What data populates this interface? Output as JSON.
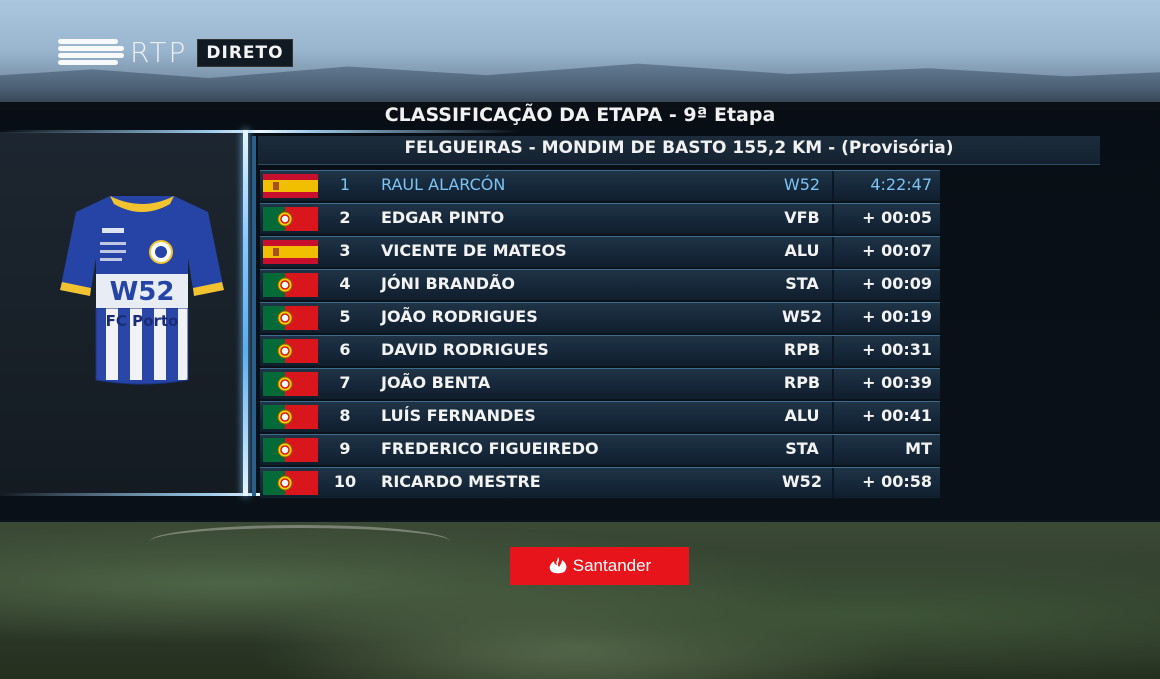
{
  "broadcast": {
    "channel": "RTP",
    "live_label": "DIRETO"
  },
  "header": {
    "title": "CLASSIFICAÇÃO DA ETAPA - 9ª Etapa",
    "subtitle": "FELGUEIRAS - MONDIM DE BASTO  155,2 KM - (Provisória)"
  },
  "jersey": {
    "brand": "W52",
    "club": "FC Porto",
    "icon": "team-jersey-icon"
  },
  "standings": [
    {
      "pos": "1",
      "name": "RAUL ALARCÓN",
      "team": "W52",
      "time": "4:22:47",
      "flag": "spain"
    },
    {
      "pos": "2",
      "name": "EDGAR PINTO",
      "team": "VFB",
      "time": "+ 00:05",
      "flag": "portugal"
    },
    {
      "pos": "3",
      "name": "VICENTE DE MATEOS",
      "team": "ALU",
      "time": "+ 00:07",
      "flag": "spain"
    },
    {
      "pos": "4",
      "name": "JÓNI BRANDÃO",
      "team": "STA",
      "time": "+ 00:09",
      "flag": "portugal"
    },
    {
      "pos": "5",
      "name": "JOÃO RODRIGUES",
      "team": "W52",
      "time": "+ 00:19",
      "flag": "portugal"
    },
    {
      "pos": "6",
      "name": "DAVID RODRIGUES",
      "team": "RPB",
      "time": "+ 00:31",
      "flag": "portugal"
    },
    {
      "pos": "7",
      "name": "JOÃO BENTA",
      "team": "RPB",
      "time": "+ 00:39",
      "flag": "portugal"
    },
    {
      "pos": "8",
      "name": "LUÍS FERNANDES",
      "team": "ALU",
      "time": "+ 00:41",
      "flag": "portugal"
    },
    {
      "pos": "9",
      "name": "FREDERICO FIGUEIREDO",
      "team": "STA",
      "time": "MT",
      "flag": "portugal"
    },
    {
      "pos": "10",
      "name": "RICARDO MESTRE",
      "team": "W52",
      "time": "+ 00:58",
      "flag": "portugal"
    }
  ],
  "sponsor": {
    "name": "Santander",
    "color": "#e8141b"
  },
  "colors": {
    "leader_text": "#7cc3f3",
    "row_text": "#f3f3f3",
    "accent_glow": "#88c8ff"
  }
}
